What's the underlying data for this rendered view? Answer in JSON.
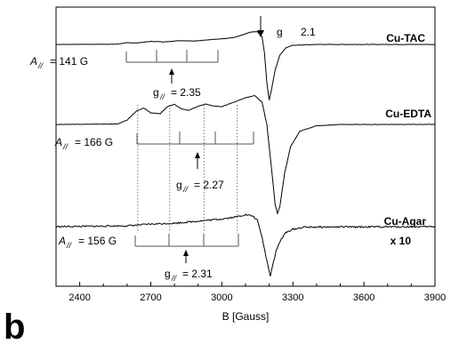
{
  "panel_label": "b",
  "chart_data": {
    "type": "line",
    "title": "",
    "xlabel": "B [Gauss]",
    "ylabel": "",
    "xlim": [
      2300,
      3900
    ],
    "x_ticks": [
      2400,
      2700,
      3000,
      3300,
      3600,
      3900
    ],
    "grid": false,
    "series": [
      {
        "name": "Cu-TAC",
        "points": [
          [
            2300,
            0.0
          ],
          [
            2550,
            0.05
          ],
          [
            2600,
            0.4
          ],
          [
            2640,
            0.35
          ],
          [
            2700,
            0.7
          ],
          [
            2760,
            0.6
          ],
          [
            2820,
            0.9
          ],
          [
            2880,
            0.8
          ],
          [
            2950,
            1.1
          ],
          [
            3000,
            1.3
          ],
          [
            3050,
            1.6
          ],
          [
            3090,
            2.3
          ],
          [
            3120,
            2.9
          ],
          [
            3150,
            3.0
          ],
          [
            3170,
            1.8
          ],
          [
            3180,
            -2.0
          ],
          [
            3190,
            -9.0
          ],
          [
            3200,
            -13.0
          ],
          [
            3210,
            -10.5
          ],
          [
            3225,
            -6.0
          ],
          [
            3245,
            -2.5
          ],
          [
            3270,
            -0.8
          ],
          [
            3300,
            -0.2
          ],
          [
            3400,
            0.0
          ],
          [
            3900,
            0.0
          ]
        ]
      },
      {
        "name": "Cu-EDTA",
        "points": [
          [
            2300,
            0.0
          ],
          [
            2560,
            0.1
          ],
          [
            2600,
            1.0
          ],
          [
            2640,
            3.0
          ],
          [
            2670,
            3.7
          ],
          [
            2700,
            2.6
          ],
          [
            2740,
            2.4
          ],
          [
            2770,
            4.0
          ],
          [
            2800,
            4.5
          ],
          [
            2830,
            3.5
          ],
          [
            2860,
            3.2
          ],
          [
            2900,
            4.1
          ],
          [
            2930,
            4.6
          ],
          [
            2960,
            4.2
          ],
          [
            3000,
            4.0
          ],
          [
            3050,
            5.0
          ],
          [
            3100,
            6.0
          ],
          [
            3140,
            6.5
          ],
          [
            3170,
            5.0
          ],
          [
            3190,
            0.0
          ],
          [
            3210,
            -10.0
          ],
          [
            3225,
            -18.0
          ],
          [
            3235,
            -20.0
          ],
          [
            3245,
            -18.5
          ],
          [
            3265,
            -11.0
          ],
          [
            3290,
            -5.0
          ],
          [
            3330,
            -1.5
          ],
          [
            3400,
            -0.3
          ],
          [
            3500,
            0.0
          ],
          [
            3900,
            0.0
          ]
        ]
      },
      {
        "name": "Cu-Agar",
        "points": [
          [
            2300,
            0.0
          ],
          [
            2600,
            0.2
          ],
          [
            2700,
            0.6
          ],
          [
            2800,
            0.8
          ],
          [
            2900,
            1.3
          ],
          [
            3000,
            1.8
          ],
          [
            3050,
            2.2
          ],
          [
            3100,
            2.8
          ],
          [
            3130,
            2.5
          ],
          [
            3150,
            1.5
          ],
          [
            3170,
            -2.5
          ],
          [
            3190,
            -8.0
          ],
          [
            3205,
            -11.5
          ],
          [
            3215,
            -9.0
          ],
          [
            3230,
            -5.5
          ],
          [
            3250,
            -3.0
          ],
          [
            3270,
            -1.4
          ],
          [
            3300,
            -0.6
          ],
          [
            3350,
            -0.1
          ],
          [
            3900,
            0.0
          ]
        ]
      }
    ],
    "annotations": {
      "g_perp": {
        "g": "g",
        "value": "2.1"
      },
      "tac": {
        "a_prefix": "A",
        "a_sub": "//",
        "a_value": "= 141 G",
        "g_prefix": "g",
        "g_sub": "//",
        "g_value": "= 2.35"
      },
      "edta": {
        "a_prefix": "A",
        "a_sub": "//",
        "a_value": "= 166 G",
        "g_prefix": "g",
        "g_sub": "//",
        "g_value": "= 2.27"
      },
      "agar": {
        "a_prefix": "A",
        "a_sub": "//",
        "a_value": "= 156 G",
        "g_prefix": "g",
        "g_sub": "//",
        "g_value": "= 2.31",
        "scale": "x 10"
      }
    },
    "hyperfine_lines_edta_gauss": [
      2645,
      2780,
      2925,
      3065
    ]
  }
}
